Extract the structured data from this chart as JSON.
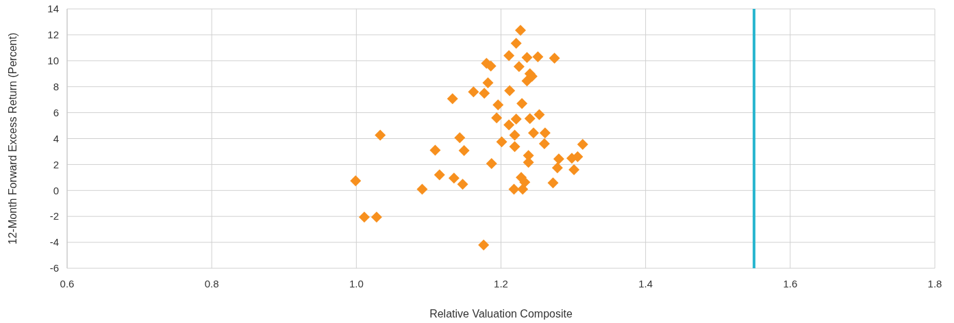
{
  "chart_data": {
    "type": "scatter",
    "xlabel": "Relative Valuation Composite",
    "ylabel": "12-Month Forward Excess Return (Percent)",
    "xlim": [
      0.6,
      1.8
    ],
    "ylim": [
      -6,
      14
    ],
    "xticks": [
      0.6,
      0.8,
      {
        "value": 1,
        "label": "1.0"
      },
      1.2,
      1.4,
      1.6,
      1.8
    ],
    "yticks": [
      -6,
      -4,
      -2,
      0,
      2,
      4,
      6,
      8,
      10,
      12,
      14
    ],
    "grid": true,
    "marker": "diamond",
    "ref_lines": [
      {
        "axis": "x",
        "value": 1.55,
        "color": "#29b6cf"
      }
    ],
    "series": [
      {
        "color": "#f7901e",
        "x": [
          0.999,
          1.011,
          1.028,
          1.033,
          1.091,
          1.109,
          1.115,
          1.133,
          1.135,
          1.143,
          1.147,
          1.149,
          1.162,
          1.177,
          1.176,
          1.18,
          1.182,
          1.186,
          1.187,
          1.194,
          1.196,
          1.201,
          1.211,
          1.212,
          1.211,
          1.218,
          1.219,
          1.221,
          1.225,
          1.227,
          1.228,
          1.229,
          1.23,
          1.233,
          1.236,
          1.236,
          1.238,
          1.238,
          1.24,
          1.243,
          1.245,
          1.251,
          1.253,
          1.26,
          1.261,
          1.272,
          1.274,
          1.278,
          1.28,
          1.298,
          1.301,
          1.306,
          1.313,
          1.221,
          1.219,
          1.24
        ],
        "values": [
          0.74,
          -2.05,
          -2.05,
          4.27,
          0.1,
          3.1,
          1.2,
          7.07,
          0.95,
          4.07,
          0.48,
          3.07,
          7.6,
          7.5,
          -4.2,
          9.8,
          8.3,
          9.6,
          2.07,
          5.6,
          6.6,
          3.75,
          5.05,
          7.7,
          10.4,
          0.1,
          4.27,
          11.35,
          9.55,
          12.35,
          1.0,
          6.7,
          0.1,
          0.63,
          10.25,
          8.45,
          2.7,
          2.16,
          5.55,
          8.8,
          4.43,
          10.3,
          5.85,
          3.6,
          4.43,
          0.58,
          10.2,
          1.74,
          2.43,
          2.48,
          1.6,
          2.6,
          3.55,
          5.5,
          3.38,
          9.0
        ]
      }
    ]
  }
}
